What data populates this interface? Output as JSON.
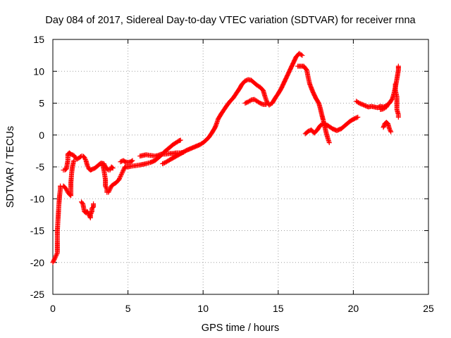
{
  "chart_data": {
    "type": "scatter",
    "title": "Day 084 of 2017, Sidereal Day-to-day VTEC variation (SDTVAR) for receiver rnna",
    "xlabel": "GPS time / hours",
    "ylabel": "SDTVAR / TECUs",
    "xlim": [
      0,
      25
    ],
    "ylim": [
      -25,
      15
    ],
    "xticks": [
      "0",
      "5",
      "10",
      "15",
      "20",
      "25"
    ],
    "yticks": [
      "-25",
      "-20",
      "-15",
      "-10",
      "-5",
      "0",
      "5",
      "10",
      "15"
    ],
    "grid": true,
    "marker": "+",
    "series_color": "#ff0000",
    "series": [
      {
        "segments": [
          [
            [
              0.0,
              -20.0
            ],
            [
              0.1,
              -19.5
            ],
            [
              0.2,
              -19.0
            ],
            [
              0.3,
              -18.5
            ],
            [
              0.3,
              -17
            ],
            [
              0.3,
              -15
            ],
            [
              0.35,
              -13
            ],
            [
              0.4,
              -11
            ],
            [
              0.45,
              -9.5
            ],
            [
              0.5,
              -8.5
            ],
            [
              0.5,
              -8.0
            ]
          ],
          [
            [
              0.7,
              -8.0
            ],
            [
              0.8,
              -8.2
            ],
            [
              0.9,
              -8.5
            ],
            [
              1.0,
              -9.0
            ],
            [
              1.1,
              -9.3
            ],
            [
              1.2,
              -9.5
            ],
            [
              1.2,
              -8.5
            ],
            [
              1.2,
              -7.5
            ],
            [
              1.25,
              -6.0
            ],
            [
              1.3,
              -5.0
            ],
            [
              1.4,
              -4.0
            ]
          ],
          [
            [
              0.7,
              -5.5
            ],
            [
              0.8,
              -5.5
            ],
            [
              0.9,
              -5.3
            ],
            [
              1.0,
              -4.0
            ],
            [
              1.0,
              -3.0
            ],
            [
              1.1,
              -2.8
            ],
            [
              1.2,
              -3.0
            ],
            [
              1.4,
              -3.2
            ],
            [
              1.5,
              -3.5
            ],
            [
              1.6,
              -3.8
            ],
            [
              1.8,
              -3.5
            ],
            [
              1.9,
              -3.3
            ],
            [
              2.0,
              -3.3
            ],
            [
              2.1,
              -3.5
            ],
            [
              2.2,
              -4.0
            ],
            [
              2.3,
              -4.8
            ],
            [
              2.4,
              -5.3
            ],
            [
              2.5,
              -5.5
            ],
            [
              2.6,
              -5.4
            ],
            [
              2.8,
              -5.2
            ],
            [
              3.0,
              -4.8
            ],
            [
              3.2,
              -4.4
            ],
            [
              3.4,
              -4.5
            ],
            [
              3.5,
              -5.0
            ],
            [
              3.7,
              -5.5
            ],
            [
              3.8,
              -5.5
            ],
            [
              3.9,
              -5.0
            ],
            [
              4.0,
              -5.2
            ]
          ],
          [
            [
              1.9,
              -10.5
            ],
            [
              2.0,
              -10.8
            ],
            [
              2.1,
              -12.0
            ],
            [
              2.2,
              -12.2
            ],
            [
              2.3,
              -12.0
            ],
            [
              2.4,
              -12.5
            ],
            [
              2.5,
              -13.0
            ],
            [
              2.5,
              -12.5
            ],
            [
              2.6,
              -12.0
            ],
            [
              2.6,
              -11.5
            ],
            [
              2.7,
              -11.3
            ],
            [
              2.7,
              -10.8
            ]
          ],
          [
            [
              3.3,
              -4.5
            ],
            [
              3.4,
              -5.5
            ],
            [
              3.5,
              -7.0
            ],
            [
              3.5,
              -8.0
            ],
            [
              3.6,
              -8.5
            ],
            [
              3.6,
              -9.0
            ],
            [
              3.7,
              -9.0
            ],
            [
              3.8,
              -8.5
            ],
            [
              3.9,
              -8.0
            ],
            [
              4.0,
              -7.8
            ],
            [
              4.2,
              -7.5
            ],
            [
              4.4,
              -7.0
            ],
            [
              4.5,
              -6.5
            ],
            [
              4.6,
              -6.0
            ],
            [
              4.7,
              -5.5
            ],
            [
              4.8,
              -5.0
            ]
          ],
          [
            [
              4.5,
              -4.2
            ],
            [
              4.7,
              -4.0
            ],
            [
              4.8,
              -4.2
            ],
            [
              5.0,
              -4.3
            ],
            [
              5.2,
              -4.2
            ],
            [
              5.3,
              -4.0
            ]
          ],
          [
            [
              4.8,
              -5.0
            ],
            [
              5.0,
              -5.0
            ],
            [
              5.2,
              -4.9
            ],
            [
              5.5,
              -4.8
            ],
            [
              5.8,
              -4.7
            ],
            [
              6.0,
              -4.6
            ],
            [
              6.2,
              -4.5
            ],
            [
              6.5,
              -4.3
            ],
            [
              6.8,
              -4.0
            ],
            [
              7.0,
              -3.6
            ],
            [
              7.2,
              -3.2
            ],
            [
              7.4,
              -2.7
            ],
            [
              7.6,
              -2.3
            ],
            [
              7.8,
              -1.9
            ],
            [
              8.0,
              -1.5
            ],
            [
              8.2,
              -1.2
            ],
            [
              8.4,
              -0.9
            ],
            [
              8.5,
              -0.8
            ]
          ],
          [
            [
              5.8,
              -3.3
            ],
            [
              6.0,
              -3.2
            ],
            [
              6.2,
              -3.1
            ],
            [
              6.5,
              -3.2
            ],
            [
              6.8,
              -3.3
            ],
            [
              7.0,
              -3.2
            ],
            [
              7.2,
              -3.0
            ],
            [
              7.5,
              -3.0
            ],
            [
              7.8,
              -2.9
            ],
            [
              8.0,
              -2.9
            ],
            [
              8.2,
              -2.8
            ],
            [
              8.5,
              -2.8
            ],
            [
              8.7,
              -2.7
            ]
          ],
          [
            [
              7.3,
              -4.5
            ],
            [
              7.5,
              -4.3
            ],
            [
              7.7,
              -4.0
            ],
            [
              8.0,
              -3.6
            ],
            [
              8.3,
              -3.2
            ],
            [
              8.6,
              -2.8
            ],
            [
              8.9,
              -2.4
            ],
            [
              9.2,
              -2.1
            ],
            [
              9.5,
              -1.8
            ],
            [
              9.8,
              -1.5
            ],
            [
              10.0,
              -1.2
            ],
            [
              10.2,
              -0.8
            ],
            [
              10.4,
              -0.3
            ],
            [
              10.6,
              0.4
            ],
            [
              10.8,
              1.2
            ],
            [
              10.9,
              1.8
            ],
            [
              11.0,
              2.5
            ],
            [
              11.2,
              3.3
            ],
            [
              11.4,
              4.0
            ],
            [
              11.6,
              4.7
            ],
            [
              11.8,
              5.3
            ],
            [
              12.0,
              5.8
            ],
            [
              12.2,
              6.5
            ],
            [
              12.4,
              7.2
            ],
            [
              12.6,
              8.0
            ],
            [
              12.8,
              8.5
            ],
            [
              13.0,
              8.7
            ],
            [
              13.2,
              8.6
            ],
            [
              13.4,
              8.2
            ],
            [
              13.6,
              7.8
            ],
            [
              13.8,
              7.5
            ],
            [
              14.0,
              7.0
            ],
            [
              14.1,
              6.2
            ],
            [
              14.2,
              5.5
            ],
            [
              14.3,
              5.0
            ],
            [
              14.4,
              4.7
            ],
            [
              14.6,
              5.0
            ],
            [
              14.8,
              5.8
            ],
            [
              15.0,
              6.5
            ],
            [
              15.2,
              7.3
            ],
            [
              15.4,
              8.3
            ],
            [
              15.6,
              9.3
            ],
            [
              15.8,
              10.3
            ],
            [
              16.0,
              11.3
            ],
            [
              16.2,
              12.3
            ],
            [
              16.4,
              12.8
            ],
            [
              16.6,
              12.5
            ]
          ],
          [
            [
              12.8,
              5.0
            ],
            [
              13.0,
              5.2
            ],
            [
              13.2,
              5.5
            ],
            [
              13.4,
              5.6
            ],
            [
              13.6,
              5.3
            ],
            [
              13.8,
              5.0
            ],
            [
              14.0,
              4.8
            ],
            [
              14.2,
              4.8
            ]
          ],
          [
            [
              16.3,
              10.8
            ],
            [
              16.5,
              10.8
            ],
            [
              16.7,
              10.8
            ],
            [
              16.9,
              10.2
            ],
            [
              17.0,
              9.0
            ],
            [
              17.1,
              8.0
            ],
            [
              17.3,
              6.8
            ],
            [
              17.5,
              5.8
            ],
            [
              17.7,
              5.0
            ],
            [
              17.8,
              4.2
            ],
            [
              17.9,
              3.2
            ],
            [
              18.0,
              2.3
            ],
            [
              18.1,
              1.3
            ],
            [
              18.2,
              0.3
            ],
            [
              18.3,
              -0.5
            ],
            [
              18.4,
              -1.2
            ]
          ],
          [
            [
              16.8,
              0.2
            ],
            [
              17.0,
              0.6
            ],
            [
              17.2,
              0.8
            ],
            [
              17.4,
              0.3
            ],
            [
              17.6,
              0.8
            ],
            [
              17.8,
              1.5
            ],
            [
              18.0,
              1.8
            ],
            [
              18.3,
              1.5
            ],
            [
              18.6,
              1.0
            ],
            [
              18.9,
              0.7
            ],
            [
              19.2,
              1.0
            ],
            [
              19.5,
              1.6
            ],
            [
              19.8,
              2.2
            ],
            [
              20.1,
              2.6
            ],
            [
              20.3,
              2.8
            ]
          ],
          [
            [
              20.2,
              5.3
            ],
            [
              20.4,
              5.0
            ],
            [
              20.6,
              4.8
            ],
            [
              20.8,
              4.6
            ],
            [
              21.0,
              4.4
            ],
            [
              21.2,
              4.5
            ],
            [
              21.4,
              4.4
            ],
            [
              21.6,
              4.3
            ],
            [
              21.8,
              4.5
            ],
            [
              22.0,
              4.4
            ],
            [
              22.2,
              4.6
            ],
            [
              22.4,
              5.0
            ],
            [
              22.6,
              5.7
            ],
            [
              22.7,
              6.5
            ],
            [
              22.8,
              7.5
            ],
            [
              22.9,
              8.8
            ],
            [
              23.0,
              10.2
            ],
            [
              23.0,
              10.8
            ]
          ],
          [
            [
              21.8,
              4.0
            ],
            [
              22.0,
              4.1
            ],
            [
              22.2,
              4.4
            ],
            [
              22.3,
              4.8
            ],
            [
              22.4,
              5.0
            ]
          ],
          [
            [
              22.0,
              1.2
            ],
            [
              22.1,
              1.8
            ],
            [
              22.2,
              2.0
            ],
            [
              22.3,
              1.8
            ],
            [
              22.4,
              1.0
            ],
            [
              22.5,
              0.5
            ]
          ],
          [
            [
              22.8,
              8.0
            ],
            [
              22.8,
              7.0
            ],
            [
              22.9,
              6.0
            ],
            [
              22.9,
              5.0
            ],
            [
              22.9,
              4.0
            ],
            [
              23.0,
              3.2
            ],
            [
              23.0,
              2.8
            ]
          ]
        ]
      }
    ]
  }
}
